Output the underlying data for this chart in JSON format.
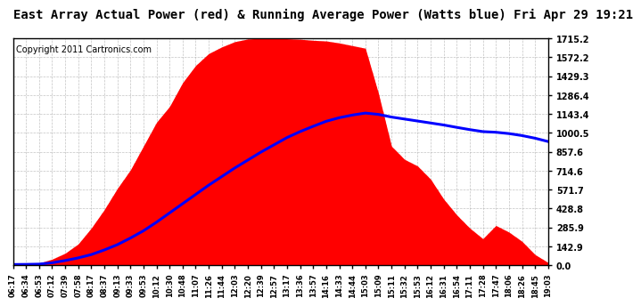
{
  "title": "East Array Actual Power (red) & Running Average Power (Watts blue) Fri Apr 29 19:21",
  "copyright": "Copyright 2011 Cartronics.com",
  "yticks": [
    0.0,
    142.9,
    285.9,
    428.8,
    571.7,
    714.6,
    857.6,
    1000.5,
    1143.4,
    1286.4,
    1429.3,
    1572.2,
    1715.2
  ],
  "xtick_labels": [
    "06:17",
    "06:34",
    "06:53",
    "07:12",
    "07:39",
    "07:58",
    "08:17",
    "08:37",
    "09:13",
    "09:33",
    "09:53",
    "10:12",
    "10:30",
    "10:48",
    "11:07",
    "11:26",
    "11:44",
    "12:03",
    "12:20",
    "12:39",
    "12:57",
    "13:17",
    "13:36",
    "13:57",
    "14:16",
    "14:33",
    "14:44",
    "15:03",
    "15:09",
    "15:11",
    "15:32",
    "15:53",
    "16:12",
    "16:31",
    "16:54",
    "17:11",
    "17:28",
    "17:47",
    "18:06",
    "18:26",
    "18:45",
    "19:03"
  ],
  "ymax": 1715.2,
  "fill_color": "#ff0000",
  "line_color": "#0000ff",
  "background_color": "#ffffff",
  "grid_color": "#aaaaaa",
  "title_fontsize": 10,
  "copyright_fontsize": 7,
  "actual_power": [
    5,
    8,
    15,
    45,
    90,
    160,
    280,
    420,
    580,
    720,
    900,
    1080,
    1200,
    1380,
    1510,
    1600,
    1650,
    1690,
    1710,
    1715,
    1715,
    1712,
    1708,
    1700,
    1695,
    1680,
    1660,
    1640,
    1300,
    900,
    800,
    750,
    650,
    500,
    380,
    280,
    200,
    300,
    250,
    180,
    80,
    20
  ],
  "running_avg": [
    5,
    6,
    8,
    18,
    35,
    55,
    80,
    115,
    155,
    205,
    260,
    325,
    395,
    465,
    535,
    605,
    670,
    735,
    795,
    855,
    910,
    965,
    1010,
    1050,
    1088,
    1115,
    1135,
    1150,
    1140,
    1120,
    1105,
    1090,
    1075,
    1060,
    1042,
    1025,
    1010,
    1005,
    995,
    980,
    960,
    935
  ]
}
